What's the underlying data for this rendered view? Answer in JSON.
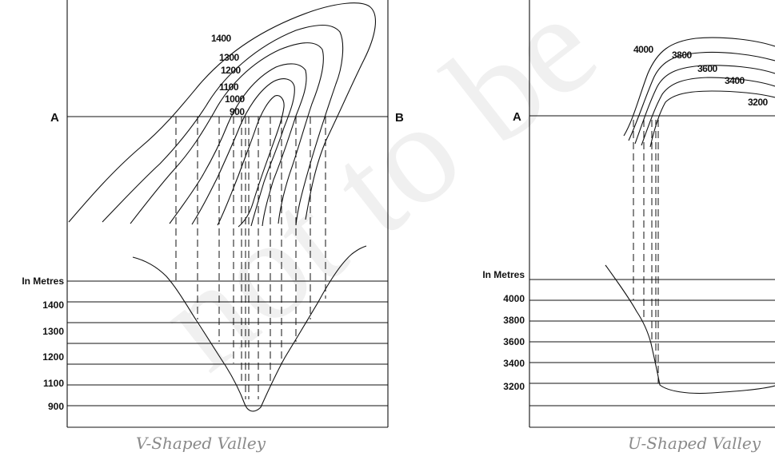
{
  "watermark": "not to be",
  "v_valley": {
    "point_a": "A",
    "point_b": "B",
    "contour_labels": [
      "1400",
      "1300",
      "1200",
      "1100",
      "1000",
      "900"
    ],
    "scale_title": "In Metres",
    "scale_labels": [
      "1400",
      "1300",
      "1200",
      "1100",
      "900"
    ],
    "caption": "V-Shaped Valley"
  },
  "u_valley": {
    "point_a": "A",
    "contour_labels": [
      "4000",
      "3800",
      "3600",
      "3400",
      "3200"
    ],
    "scale_title": "In Metres",
    "scale_labels": [
      "4000",
      "3800",
      "3600",
      "3400",
      "3200"
    ],
    "caption": "U-Shaped Valley"
  }
}
